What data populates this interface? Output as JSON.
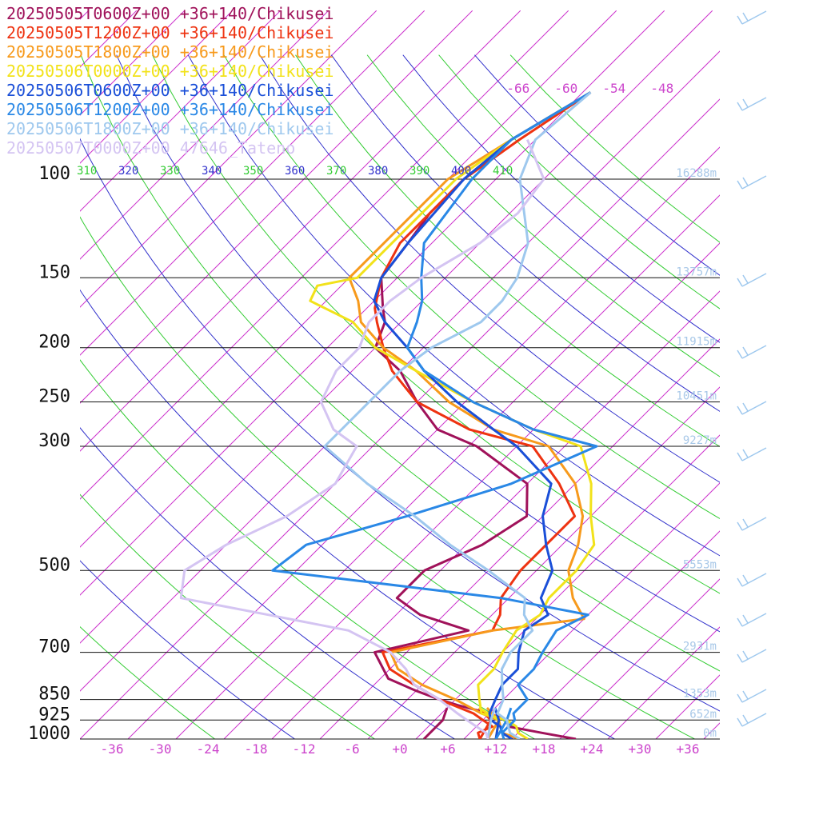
{
  "chart_data": {
    "type": "line",
    "title": "",
    "xlabel": "",
    "ylabel": "",
    "plot": {
      "pressure_range": [
        100,
        1000
      ],
      "temperature_range_at_1000hPa": [
        -40,
        40
      ],
      "skew": "skew-T log-p"
    },
    "pressure_levels": [
      {
        "p": 100,
        "label": "100",
        "height": "16288m"
      },
      {
        "p": 150,
        "label": "150",
        "height": "13757m"
      },
      {
        "p": 200,
        "label": "200",
        "height": "11915m"
      },
      {
        "p": 250,
        "label": "250",
        "height": "10451m"
      },
      {
        "p": 300,
        "label": "300",
        "height": "9227m"
      },
      {
        "p": 500,
        "label": "500",
        "height": "5553m"
      },
      {
        "p": 700,
        "label": "700",
        "height": "2931m"
      },
      {
        "p": 850,
        "label": "850",
        "height": "1353m"
      },
      {
        "p": 925,
        "label": "925",
        "height": "652m"
      },
      {
        "p": 1000,
        "label": "1000",
        "height": "0m"
      }
    ],
    "x_ticks": [
      {
        "t": -36,
        "label": "-36"
      },
      {
        "t": -30,
        "label": "-30"
      },
      {
        "t": -24,
        "label": "-24"
      },
      {
        "t": -18,
        "label": "-18"
      },
      {
        "t": -12,
        "label": "-12"
      },
      {
        "t": -6,
        "label": "-6"
      },
      {
        "t": 0,
        "label": "+0"
      },
      {
        "t": 6,
        "label": "+6"
      },
      {
        "t": 12,
        "label": "+12"
      },
      {
        "t": 18,
        "label": "+18"
      },
      {
        "t": 24,
        "label": "+24"
      },
      {
        "t": 30,
        "label": "+30"
      },
      {
        "t": 36,
        "label": "+36"
      }
    ],
    "upper_temp_labels": [
      {
        "t": -66,
        "label": "-66"
      },
      {
        "t": -60,
        "label": "-60"
      },
      {
        "t": -54,
        "label": "-54"
      },
      {
        "t": -48,
        "label": "-48"
      }
    ],
    "theta_labels": [
      {
        "theta": 310,
        "label": "310",
        "color": "#33cc33"
      },
      {
        "theta": 320,
        "label": "320",
        "color": "#3333cc"
      },
      {
        "theta": 330,
        "label": "330",
        "color": "#33cc33"
      },
      {
        "theta": 340,
        "label": "340",
        "color": "#3333cc"
      },
      {
        "theta": 350,
        "label": "350",
        "color": "#33cc33"
      },
      {
        "theta": 360,
        "label": "360",
        "color": "#3333cc"
      },
      {
        "theta": 370,
        "label": "370",
        "color": "#33cc33"
      },
      {
        "theta": 380,
        "label": "380",
        "color": "#3333cc"
      },
      {
        "theta": 390,
        "label": "390",
        "color": "#33cc33"
      },
      {
        "theta": 400,
        "label": "400",
        "color": "#3333cc"
      },
      {
        "theta": 410,
        "label": "410",
        "color": "#33cc33"
      }
    ],
    "series": [
      {
        "name": "20250505T0600Z+00 +36+140/Chikusei",
        "color": "#a0125a",
        "points": [
          [
            1000,
            22
          ],
          [
            975,
            17
          ],
          [
            950,
            12
          ],
          [
            925,
            11
          ],
          [
            900,
            8
          ],
          [
            870,
            3
          ],
          [
            850,
            0
          ],
          [
            820,
            -4
          ],
          [
            780,
            -9
          ],
          [
            700,
            -14
          ],
          [
            640,
            -5
          ],
          [
            600,
            -13
          ],
          [
            560,
            -18
          ],
          [
            500,
            -18
          ],
          [
            450,
            -14
          ],
          [
            400,
            -12
          ],
          [
            350,
            -16
          ],
          [
            300,
            -27
          ],
          [
            280,
            -34
          ],
          [
            250,
            -40
          ],
          [
            220,
            -46
          ],
          [
            200,
            -52
          ],
          [
            180,
            -54
          ],
          [
            170,
            -56
          ],
          [
            150,
            -60
          ],
          [
            130,
            -61
          ],
          [
            115,
            -62
          ],
          [
            100,
            -62
          ],
          [
            85,
            -61
          ],
          [
            70,
            -57
          ]
        ],
        "dewpoints": [
          [
            1000,
            3
          ],
          [
            925,
            3
          ],
          [
            880,
            2
          ]
        ]
      },
      {
        "name": "20250505T1200Z+00 +36+140/Chikusei",
        "color": "#ee3311",
        "points": [
          [
            1000,
            10
          ],
          [
            975,
            9
          ],
          [
            950,
            10
          ],
          [
            925,
            8
          ],
          [
            900,
            6
          ],
          [
            850,
            0
          ],
          [
            800,
            -5
          ],
          [
            750,
            -10
          ],
          [
            700,
            -13
          ],
          [
            640,
            -2
          ],
          [
            600,
            -3
          ],
          [
            560,
            -5
          ],
          [
            500,
            -6
          ],
          [
            450,
            -6
          ],
          [
            400,
            -6
          ],
          [
            350,
            -12
          ],
          [
            300,
            -20
          ],
          [
            280,
            -30
          ],
          [
            250,
            -40
          ],
          [
            220,
            -47
          ],
          [
            200,
            -51
          ],
          [
            180,
            -55
          ],
          [
            170,
            -57
          ],
          [
            150,
            -60
          ],
          [
            130,
            -62
          ],
          [
            100,
            -62
          ],
          [
            85,
            -60
          ],
          [
            70,
            -57
          ]
        ],
        "dewpoints": [
          [
            1000,
            10
          ],
          [
            925,
            9
          ],
          [
            880,
            6
          ]
        ]
      },
      {
        "name": "20250505T1800Z+00 +36+140/Chikusei",
        "color": "#f79a1c",
        "points": [
          [
            1000,
            15
          ],
          [
            975,
            12
          ],
          [
            950,
            11
          ],
          [
            925,
            10
          ],
          [
            900,
            7
          ],
          [
            850,
            2
          ],
          [
            800,
            -4
          ],
          [
            750,
            -9
          ],
          [
            700,
            -12
          ],
          [
            640,
            -2
          ],
          [
            610,
            8
          ],
          [
            560,
            4
          ],
          [
            500,
            0
          ],
          [
            450,
            -2
          ],
          [
            400,
            -5
          ],
          [
            350,
            -10
          ],
          [
            300,
            -18
          ],
          [
            280,
            -27
          ],
          [
            250,
            -36
          ],
          [
            220,
            -44
          ],
          [
            200,
            -51
          ],
          [
            180,
            -57
          ],
          [
            165,
            -60
          ],
          [
            150,
            -64
          ],
          [
            130,
            -64
          ],
          [
            100,
            -64
          ],
          [
            85,
            -61
          ],
          [
            70,
            -57
          ]
        ],
        "dewpoints": [
          [
            1000,
            11
          ],
          [
            925,
            10
          ],
          [
            880,
            7
          ]
        ]
      },
      {
        "name": "20250506T0000Z+00 +36+140/Chikusei",
        "color": "#f2e21a",
        "points": [
          [
            1000,
            16
          ],
          [
            975,
            14
          ],
          [
            950,
            13
          ],
          [
            925,
            11
          ],
          [
            900,
            7
          ],
          [
            850,
            5
          ],
          [
            800,
            3
          ],
          [
            750,
            3
          ],
          [
            700,
            2
          ],
          [
            640,
            1
          ],
          [
            600,
            2
          ],
          [
            560,
            1
          ],
          [
            500,
            1
          ],
          [
            450,
            0
          ],
          [
            400,
            -4
          ],
          [
            350,
            -8
          ],
          [
            300,
            -14
          ],
          [
            280,
            -22
          ],
          [
            250,
            -33
          ],
          [
            220,
            -44
          ],
          [
            200,
            -52
          ],
          [
            180,
            -58
          ],
          [
            165,
            -66
          ],
          [
            155,
            -67
          ],
          [
            150,
            -63
          ],
          [
            130,
            -63
          ],
          [
            100,
            -63
          ],
          [
            85,
            -61
          ],
          [
            70,
            -57
          ]
        ],
        "dewpoints": [
          [
            1000,
            12
          ],
          [
            925,
            10
          ],
          [
            880,
            6
          ]
        ]
      },
      {
        "name": "20250506T0600Z+00 +36+140/Chikusei",
        "color": "#1a4fd8",
        "points": [
          [
            1000,
            14
          ],
          [
            975,
            12
          ],
          [
            950,
            11
          ],
          [
            925,
            9
          ],
          [
            900,
            8
          ],
          [
            850,
            7
          ],
          [
            800,
            6
          ],
          [
            750,
            6
          ],
          [
            700,
            4
          ],
          [
            640,
            2
          ],
          [
            600,
            3
          ],
          [
            560,
            0
          ],
          [
            500,
            -2
          ],
          [
            450,
            -6
          ],
          [
            400,
            -10
          ],
          [
            350,
            -13
          ],
          [
            300,
            -22
          ],
          [
            280,
            -27
          ],
          [
            250,
            -35
          ],
          [
            220,
            -43
          ],
          [
            200,
            -48
          ],
          [
            180,
            -54
          ],
          [
            165,
            -58
          ],
          [
            150,
            -60
          ],
          [
            130,
            -61
          ],
          [
            100,
            -62
          ],
          [
            85,
            -61
          ],
          [
            70,
            -57
          ]
        ],
        "dewpoints": [
          [
            1000,
            12
          ],
          [
            925,
            10
          ],
          [
            880,
            8
          ]
        ]
      },
      {
        "name": "20250506T1200Z+00 +36+140/Chikusei",
        "color": "#2a88e6",
        "points": [
          [
            1000,
            13
          ],
          [
            975,
            12
          ],
          [
            950,
            12
          ],
          [
            925,
            12
          ],
          [
            900,
            11
          ],
          [
            850,
            11
          ],
          [
            800,
            8
          ],
          [
            750,
            8
          ],
          [
            700,
            7
          ],
          [
            640,
            6
          ],
          [
            600,
            8
          ],
          [
            560,
            -5
          ],
          [
            500,
            -37
          ],
          [
            450,
            -36
          ],
          [
            400,
            -27
          ],
          [
            350,
            -18
          ],
          [
            300,
            -12
          ],
          [
            280,
            -22
          ],
          [
            250,
            -33
          ],
          [
            220,
            -43
          ],
          [
            200,
            -48
          ],
          [
            180,
            -50
          ],
          [
            165,
            -52
          ],
          [
            150,
            -55
          ],
          [
            130,
            -59
          ],
          [
            100,
            -61
          ],
          [
            85,
            -61
          ],
          [
            70,
            -57
          ]
        ],
        "dewpoints": [
          [
            1000,
            12
          ],
          [
            925,
            11
          ],
          [
            880,
            10
          ]
        ]
      },
      {
        "name": "20250506T1800Z+00 +36+140/Chikusei",
        "color": "#9ec8ee",
        "points": [
          [
            1000,
            15
          ],
          [
            975,
            13
          ],
          [
            950,
            12
          ],
          [
            925,
            11
          ],
          [
            900,
            9
          ],
          [
            850,
            8
          ],
          [
            800,
            6
          ],
          [
            750,
            4
          ],
          [
            700,
            3
          ],
          [
            640,
            3
          ],
          [
            600,
            0
          ],
          [
            560,
            -2
          ],
          [
            500,
            -10
          ],
          [
            450,
            -18
          ],
          [
            400,
            -26
          ],
          [
            350,
            -36
          ],
          [
            300,
            -46
          ],
          [
            280,
            -46
          ],
          [
            250,
            -46
          ],
          [
            220,
            -46
          ],
          [
            200,
            -45
          ],
          [
            180,
            -42
          ],
          [
            165,
            -42
          ],
          [
            150,
            -43
          ],
          [
            130,
            -46
          ],
          [
            100,
            -55
          ],
          [
            85,
            -58
          ],
          [
            70,
            -57
          ]
        ],
        "dewpoints": [
          [
            1000,
            11
          ],
          [
            925,
            9
          ],
          [
            880,
            8
          ]
        ]
      },
      {
        "name": "20250507T0000Z+00 47646_Tateno",
        "color": "#d4c4f2",
        "points": [
          [
            1000,
            11
          ],
          [
            975,
            10
          ],
          [
            950,
            8
          ],
          [
            925,
            6
          ],
          [
            900,
            4
          ],
          [
            850,
            0
          ],
          [
            800,
            -5
          ],
          [
            750,
            -8
          ],
          [
            700,
            -12
          ],
          [
            640,
            -20
          ],
          [
            600,
            -32
          ],
          [
            560,
            -45
          ],
          [
            500,
            -48
          ],
          [
            450,
            -46
          ],
          [
            400,
            -42
          ],
          [
            350,
            -40
          ],
          [
            300,
            -42
          ],
          [
            280,
            -47
          ],
          [
            250,
            -52
          ],
          [
            220,
            -54
          ],
          [
            200,
            -54
          ],
          [
            180,
            -56
          ],
          [
            165,
            -56
          ],
          [
            150,
            -55
          ],
          [
            130,
            -52
          ],
          [
            115,
            -51
          ],
          [
            100,
            -52
          ],
          [
            85,
            -59
          ]
        ],
        "dewpoints": []
      }
    ]
  }
}
